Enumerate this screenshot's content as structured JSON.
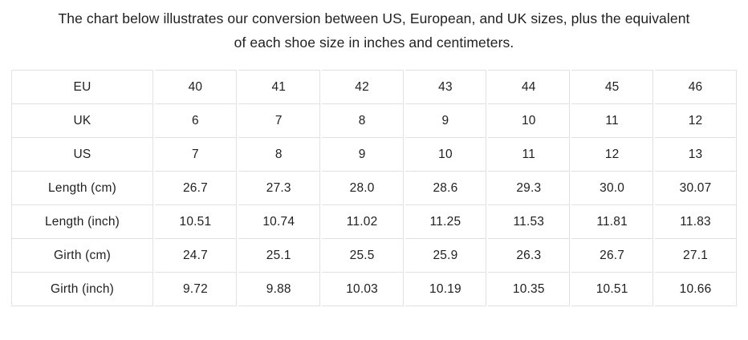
{
  "page": {
    "title_line1": "The chart below illustrates our conversion between US, European, and UK sizes, plus the equivalent",
    "title_line2": "of each shoe size in inches and centimeters."
  },
  "colors": {
    "background": "#ffffff",
    "text": "#1f1f1f",
    "table_border": "#e1e1e1"
  },
  "table": {
    "rows": [
      {
        "label": "EU",
        "values": [
          "40",
          "41",
          "42",
          "43",
          "44",
          "45",
          "46"
        ]
      },
      {
        "label": "UK",
        "values": [
          "6",
          "7",
          "8",
          "9",
          "10",
          "11",
          "12"
        ]
      },
      {
        "label": "US",
        "values": [
          "7",
          "8",
          "9",
          "10",
          "11",
          "12",
          "13"
        ]
      },
      {
        "label": "Length (cm)",
        "values": [
          "26.7",
          "27.3",
          "28.0",
          "28.6",
          "29.3",
          "30.0",
          "30.07"
        ]
      },
      {
        "label": "Length (inch)",
        "values": [
          "10.51",
          "10.74",
          "11.02",
          "11.25",
          "11.53",
          "11.81",
          "11.83"
        ]
      },
      {
        "label": "Girth (cm)",
        "values": [
          "24.7",
          "25.1",
          "25.5",
          "25.9",
          "26.3",
          "26.7",
          "27.1"
        ]
      },
      {
        "label": "Girth (inch)",
        "values": [
          "9.72",
          "9.88",
          "10.03",
          "10.19",
          "10.35",
          "10.51",
          "10.66"
        ]
      }
    ]
  }
}
